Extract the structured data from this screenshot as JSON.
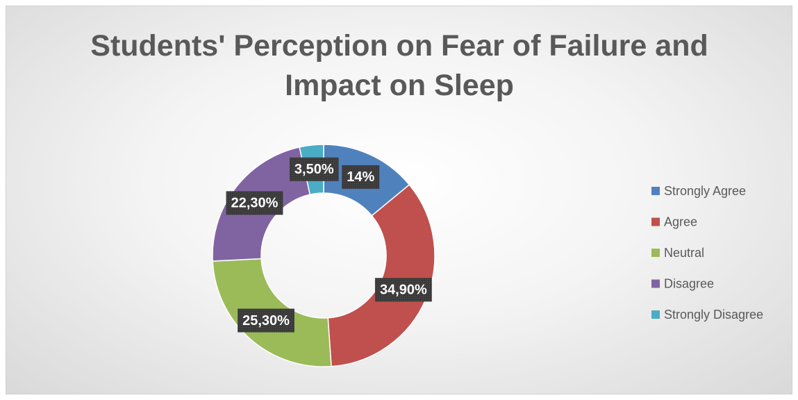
{
  "chart_data": {
    "type": "donut",
    "title": "Students' Perception on Fear of Failure and Impact on Sleep",
    "categories": [
      "Strongly Agree",
      "Agree",
      "Neutral",
      "Disagree",
      "Strongly Disagree"
    ],
    "values": [
      14,
      34.9,
      25.3,
      22.3,
      3.5
    ],
    "value_labels": [
      "14%",
      "34,90%",
      "25,30%",
      "22,30%",
      "3,50%"
    ],
    "colors": [
      "#4f81bd",
      "#c0504d",
      "#9bbb59",
      "#8064a2",
      "#4bacc6"
    ],
    "legend": "right"
  }
}
